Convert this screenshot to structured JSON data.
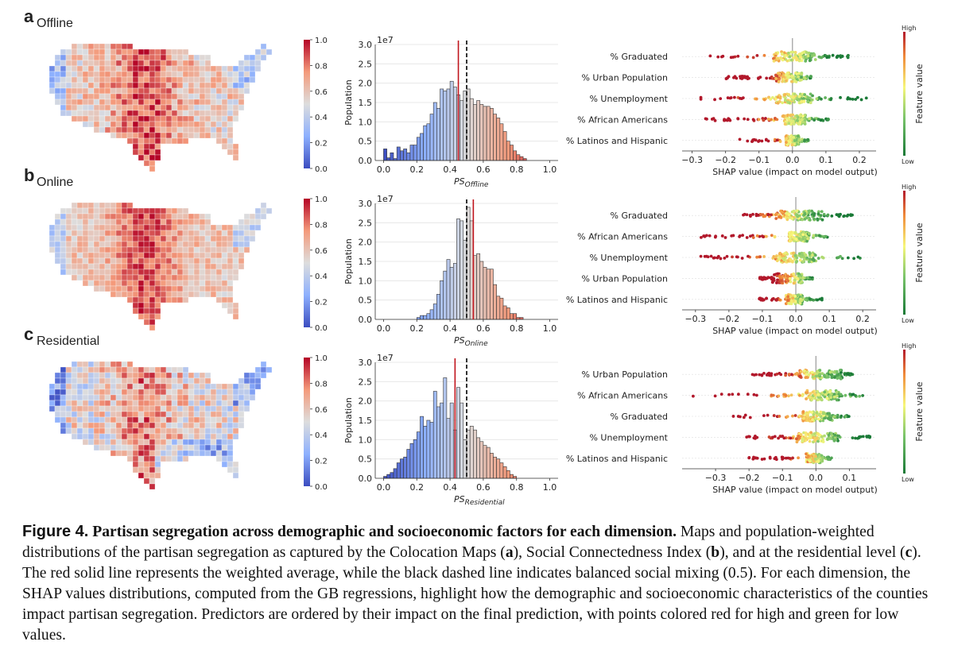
{
  "colors": {
    "diverge_low": "#3b4cc0",
    "diverge_mid": "#dddddd",
    "diverge_high": "#b40426",
    "shap_high": "#b2182b",
    "shap_mid": "#f7f77a",
    "shap_low": "#1a7a37",
    "mean_line": "#c0141c",
    "balance_line": "#000000"
  },
  "panels": [
    {
      "letter": "a",
      "label": "Offline",
      "colorbar_ticks": [
        "0.0",
        "0.2",
        "0.4",
        "0.6",
        "0.8",
        "1.0"
      ],
      "hist": {
        "exponent": "1e7",
        "ylabel": "Population",
        "xlabel_main": "PS",
        "xlabel_sub": "Offline",
        "xticks": [
          "0.0",
          "0.2",
          "0.4",
          "0.6",
          "0.8",
          "1.0"
        ],
        "yticks": [
          "0.0",
          "0.5",
          "1.0",
          "1.5",
          "2.0",
          "2.5",
          "3.0"
        ],
        "mean": 0.45,
        "balance": 0.5,
        "bins_x0": 0.0,
        "bin_width": 0.02,
        "values": [
          0.3,
          0.07,
          0.2,
          0.05,
          0.35,
          0.25,
          0.3,
          0.2,
          0.4,
          0.4,
          0.6,
          0.7,
          0.9,
          0.95,
          1.2,
          1.5,
          1.35,
          1.85,
          1.8,
          1.85,
          2.05,
          1.9,
          1.7,
          1.55,
          1.8,
          1.85,
          1.6,
          1.45,
          1.55,
          1.45,
          1.4,
          1.4,
          1.35,
          1.2,
          1.1,
          0.95,
          0.75,
          0.5,
          0.4,
          0.25,
          0.15,
          0.1,
          0.05
        ]
      },
      "shap": {
        "features": [
          "% Graduated",
          "% Urban Population",
          "% Unemployment",
          "% African Americans",
          "% Latinos and Hispanic"
        ],
        "xticks": [
          "−0.3",
          "−0.2",
          "−0.1",
          "0.0",
          "0.1",
          "0.2"
        ],
        "xmin": -0.33,
        "xmax": 0.25,
        "xlabel": "SHAP value (impact on model output)",
        "cb_high": "High",
        "cb_low": "Low",
        "cb_title": "Feature value",
        "ranges": [
          [
            -0.27,
            0.17
          ],
          [
            -0.2,
            0.06
          ],
          [
            -0.28,
            0.23
          ],
          [
            -0.27,
            0.11
          ],
          [
            -0.17,
            0.05
          ]
        ],
        "core": [
          [
            -0.06,
            0.07
          ],
          [
            -0.05,
            0.03
          ],
          [
            -0.05,
            0.06
          ],
          [
            -0.03,
            0.04
          ],
          [
            -0.02,
            0.02
          ]
        ],
        "high_side": [
          "left",
          "left",
          "left",
          "left",
          "left"
        ]
      }
    },
    {
      "letter": "b",
      "label": "Online",
      "colorbar_ticks": [
        "0.0",
        "0.2",
        "0.4",
        "0.6",
        "0.8",
        "1.0"
      ],
      "hist": {
        "exponent": "1e7",
        "ylabel": "Population",
        "xlabel_main": "PS",
        "xlabel_sub": "Online",
        "xticks": [
          "0.0",
          "0.2",
          "0.4",
          "0.6",
          "0.8",
          "1.0"
        ],
        "yticks": [
          "0.0",
          "0.5",
          "1.0",
          "1.5",
          "2.0",
          "2.5",
          "3.0"
        ],
        "mean": 0.54,
        "balance": 0.5,
        "bins_x0": 0.2,
        "bin_width": 0.02,
        "values": [
          0.05,
          0.1,
          0.1,
          0.15,
          0.25,
          0.4,
          0.65,
          1.0,
          1.25,
          1.55,
          1.35,
          1.45,
          2.6,
          2.55,
          2.05,
          2.9,
          2.55,
          1.65,
          1.7,
          1.5,
          1.35,
          1.3,
          1.3,
          0.9,
          0.6,
          0.55,
          0.35,
          0.3,
          0.15,
          0.15,
          0.05,
          0.05
        ]
      },
      "shap": {
        "features": [
          "% Graduated",
          "% African Americans",
          "% Unemployment",
          "% Urban Population",
          "% Latinos and Hispanic"
        ],
        "xticks": [
          "−0.3",
          "−0.2",
          "−0.1",
          "0.0",
          "0.1",
          "0.2"
        ],
        "xmin": -0.34,
        "xmax": 0.24,
        "xlabel": "SHAP value (impact on model output)",
        "cb_high": "High",
        "cb_low": "Low",
        "cb_title": "Feature value",
        "ranges": [
          [
            -0.16,
            0.17
          ],
          [
            -0.29,
            0.1
          ],
          [
            -0.29,
            0.22
          ],
          [
            -0.11,
            0.05
          ],
          [
            -0.11,
            0.08
          ]
        ],
        "core": [
          [
            -0.06,
            0.08
          ],
          [
            -0.02,
            0.04
          ],
          [
            -0.06,
            0.06
          ],
          [
            -0.07,
            0.02
          ],
          [
            -0.03,
            0.02
          ]
        ],
        "high_side": [
          "left",
          "left",
          "left",
          "left",
          "left"
        ]
      }
    },
    {
      "letter": "c",
      "label": "Residential",
      "colorbar_ticks": [
        "0.0",
        "0.2",
        "0.4",
        "0.6",
        "0.8",
        "1.0"
      ],
      "hist": {
        "exponent": "1e7",
        "ylabel": "Population",
        "xlabel_main": "PS",
        "xlabel_sub": "Residential",
        "xticks": [
          "0.0",
          "0.2",
          "0.4",
          "0.6",
          "0.8",
          "1.0"
        ],
        "yticks": [
          "0.0",
          "0.5",
          "1.0",
          "1.5",
          "2.0",
          "2.5",
          "3.0"
        ],
        "mean": 0.43,
        "balance": 0.5,
        "bins_x0": 0.0,
        "bin_width": 0.02,
        "values": [
          0.05,
          0.1,
          0.15,
          0.25,
          0.4,
          0.5,
          0.55,
          0.75,
          0.9,
          1.0,
          1.2,
          1.6,
          1.35,
          1.5,
          1.45,
          2.25,
          1.85,
          1.95,
          2.6,
          1.55,
          1.95,
          1.25,
          2.35,
          1.95,
          1.0,
          1.25,
          1.35,
          1.25,
          1.05,
          0.95,
          0.85,
          0.8,
          0.65,
          0.55,
          0.5,
          0.4,
          0.3,
          0.2,
          0.1,
          0.05
        ]
      },
      "shap": {
        "features": [
          "% Urban Population",
          "% African Americans",
          "% Graduated",
          "% Unemployment",
          "% Latinos and Hispanic"
        ],
        "xticks": [
          "−0.3",
          "−0.2",
          "−0.1",
          "0.0",
          "0.1"
        ],
        "xmin": -0.4,
        "xmax": 0.18,
        "xlabel": "SHAP value (impact on model output)",
        "cb_high": "High",
        "cb_low": "Low",
        "cb_title": "Feature value",
        "ranges": [
          [
            -0.19,
            0.11
          ],
          [
            -0.37,
            0.14
          ],
          [
            -0.25,
            0.1
          ],
          [
            -0.21,
            0.17
          ],
          [
            -0.2,
            0.05
          ]
        ],
        "core": [
          [
            -0.05,
            0.08
          ],
          [
            -0.03,
            0.07
          ],
          [
            -0.04,
            0.05
          ],
          [
            -0.06,
            0.07
          ],
          [
            -0.03,
            0.02
          ]
        ],
        "high_side": [
          "left",
          "left",
          "left",
          "left",
          "left"
        ]
      }
    }
  ],
  "caption": {
    "title": "Figure 4.",
    "bold_text": "Partisan segregation across demographic and socioeconomic factors for each dimension.",
    "s1": "Maps and population-weighted distributions of the partisan segregation as captured by the Colocation Maps (",
    "ref_a": "a",
    "s2": "), Social Connectedness Index (",
    "ref_b": "b",
    "s3": "), and at the residential level (",
    "ref_c": "c",
    "s4": "). The red solid line represents the weighted average, while the black dashed line indicates balanced social mixing (0.5). For each dimension, the SHAP values distributions, computed from the GB regressions, highlight how the demographic and socioeconomic characteristics of the counties impact partisan segregation. Predictors are ordered by their impact on the final prediction, with points colored red for high and green for low values."
  }
}
